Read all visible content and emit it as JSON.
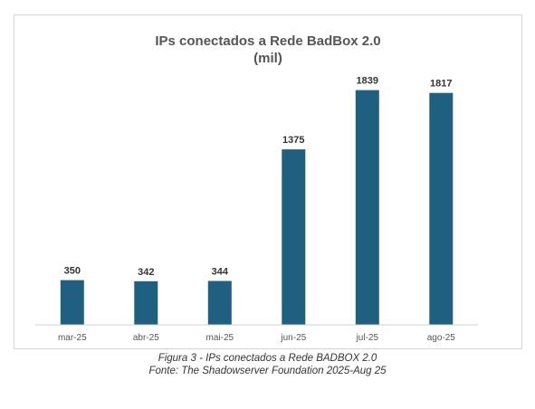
{
  "chart_data": {
    "type": "bar",
    "title": "IPs conectados a Rede BadBox 2.0",
    "subtitle": "(mil)",
    "categories": [
      "mar-25",
      "abr-25",
      "mai-25",
      "jun-25",
      "jul-25",
      "ago-25"
    ],
    "values": [
      350,
      342,
      344,
      1375,
      1839,
      1817
    ],
    "xlabel": "",
    "ylabel": "",
    "ylim": [
      0,
      1900
    ],
    "grid": false,
    "legend": "none",
    "bar_color": "#1f5f7f",
    "data_labels": true
  },
  "caption": {
    "line1": "Figura 3 - IPs conectados a Rede BADBOX 2.0",
    "line2": "Fonte: The Shadowserver Foundation 2025-Aug 25"
  }
}
